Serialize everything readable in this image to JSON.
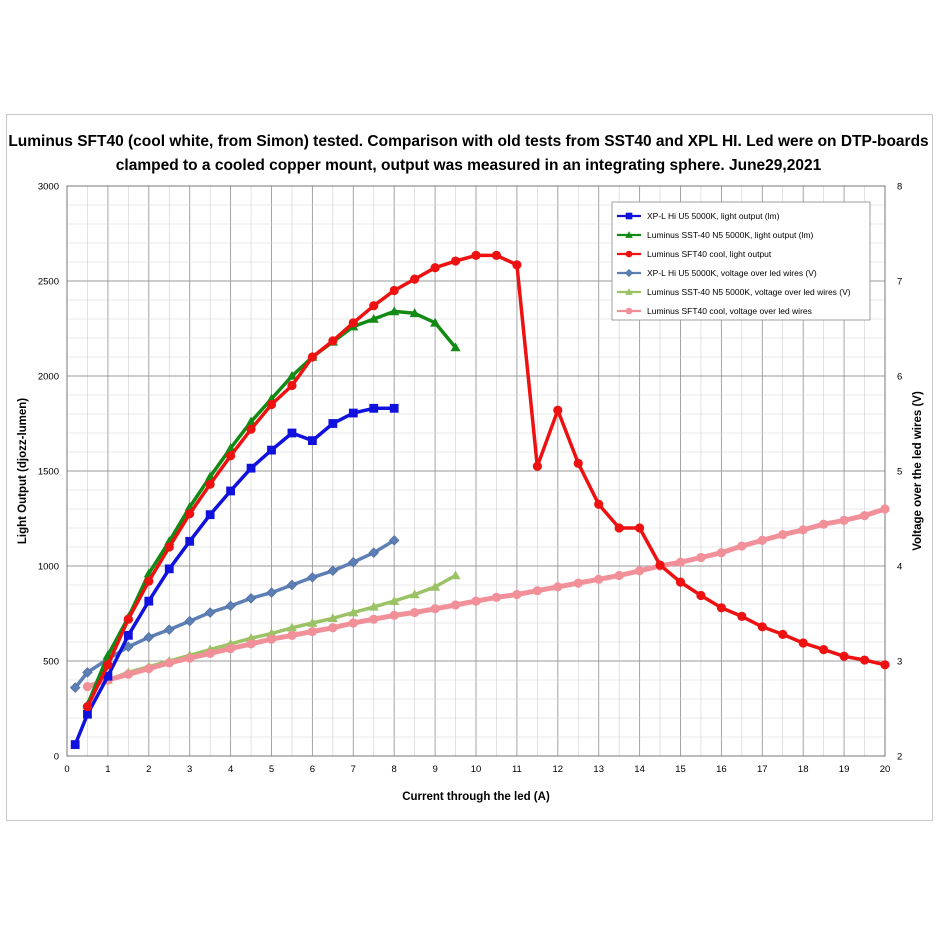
{
  "chart_data": {
    "type": "line",
    "title_lines": [
      "Luminus SFT40 (cool white, from Simon) tested. Comparison with old tests from SST40 and XPL HI. Led were on DTP-boards",
      "clamped to a cooled copper mount, output was measured in an integrating sphere. June29,2021"
    ],
    "xlabel": "Current through the led (A)",
    "ylabel": "Light Output (djozz-lumen)",
    "y2label": "Voltage over the led wires (V)",
    "xlim": [
      0,
      20
    ],
    "ylim": [
      0,
      3000
    ],
    "y2lim": [
      2,
      8
    ],
    "x_ticks": [
      "0",
      "1",
      "2",
      "3",
      "4",
      "5",
      "6",
      "7",
      "8",
      "9",
      "10",
      "11",
      "12",
      "13",
      "14",
      "15",
      "16",
      "17",
      "18",
      "19",
      "20"
    ],
    "y_ticks": [
      "0",
      "500",
      "1000",
      "1500",
      "2000",
      "2500",
      "3000"
    ],
    "y2_ticks": [
      "2",
      "3",
      "4",
      "5",
      "6",
      "7",
      "8"
    ],
    "grid": true,
    "legend_position": "top-right",
    "series": [
      {
        "name": "XP-L Hi U5 5000K, light output (lm)",
        "axis": "left",
        "color": "#1111dd",
        "marker": "square",
        "line_width": 3.5,
        "x": [
          0.2,
          0.5,
          1,
          1.5,
          2,
          2.5,
          3,
          3.5,
          4,
          4.5,
          5,
          5.5,
          6,
          6.5,
          7,
          7.5,
          8
        ],
        "y": [
          60,
          220,
          420,
          635,
          815,
          985,
          1130,
          1270,
          1395,
          1515,
          1610,
          1700,
          1660,
          1750,
          1805,
          1830,
          1830
        ]
      },
      {
        "name": "Luminus SST-40 N5 5000K, light output (lm)",
        "axis": "left",
        "color": "#138a13",
        "marker": "triangle",
        "line_width": 3.5,
        "x": [
          0.5,
          1,
          1.5,
          2,
          2.5,
          3,
          3.5,
          4,
          4.5,
          5,
          5.5,
          6,
          6.5,
          7,
          7.5,
          8,
          8.5,
          9,
          9.5
        ],
        "y": [
          270,
          530,
          730,
          960,
          1130,
          1310,
          1470,
          1620,
          1760,
          1880,
          2000,
          2100,
          2180,
          2260,
          2300,
          2340,
          2330,
          2280,
          2150
        ]
      },
      {
        "name": "Luminus SFT40 cool, light output",
        "axis": "left",
        "color": "#ee1111",
        "marker": "circle",
        "line_width": 3.5,
        "x": [
          0.5,
          1,
          1.5,
          2,
          2.5,
          3,
          3.5,
          4,
          4.5,
          5,
          5.5,
          6,
          6.5,
          7,
          7.5,
          8,
          8.5,
          9,
          9.5,
          10,
          10.5,
          11,
          11.5,
          12,
          12.5,
          13,
          13.5,
          14,
          14.5,
          15,
          15.5,
          16,
          16.5,
          17,
          17.5,
          18,
          18.5,
          19,
          19.5,
          20
        ],
        "y": [
          260,
          480,
          720,
          920,
          1100,
          1275,
          1430,
          1580,
          1720,
          1850,
          1950,
          2100,
          2185,
          2280,
          2370,
          2450,
          2510,
          2570,
          2605,
          2635,
          2635,
          2585,
          1525,
          1820,
          1540,
          1325,
          1200,
          1200,
          1005,
          915,
          845,
          780,
          735,
          680,
          640,
          595,
          560,
          525,
          505,
          480
        ]
      },
      {
        "name": "XP-L Hi U5 5000K, voltage over led wires (V)",
        "axis": "right",
        "color": "#5d7fb5",
        "marker": "diamond",
        "line_width": 3.5,
        "x": [
          0.2,
          0.5,
          1,
          1.5,
          2,
          2.5,
          3,
          3.5,
          4,
          4.5,
          5,
          5.5,
          6,
          6.5,
          7,
          7.5,
          8
        ],
        "y": [
          2.72,
          2.88,
          3.02,
          3.15,
          3.25,
          3.33,
          3.42,
          3.51,
          3.58,
          3.66,
          3.72,
          3.8,
          3.88,
          3.95,
          4.04,
          4.14,
          4.27
        ]
      },
      {
        "name": "Luminus SST-40 N5 5000K, voltage over led wires (V)",
        "axis": "right",
        "color": "#9bc264",
        "marker": "triangle",
        "line_width": 3.5,
        "x": [
          1,
          1.5,
          2,
          2.5,
          3,
          3.5,
          4,
          4.5,
          5,
          5.5,
          6,
          6.5,
          7,
          7.5,
          8,
          8.5,
          9,
          9.5
        ],
        "y": [
          2.8,
          2.88,
          2.94,
          3.0,
          3.06,
          3.12,
          3.18,
          3.24,
          3.29,
          3.35,
          3.4,
          3.45,
          3.51,
          3.57,
          3.63,
          3.7,
          3.78,
          3.9
        ]
      },
      {
        "name": "Luminus SFT40 cool, voltage over led wires",
        "axis": "right",
        "color": "#f2909a",
        "marker": "circle",
        "line_width": 5,
        "x": [
          0.5,
          1,
          1.5,
          2,
          2.5,
          3,
          3.5,
          4,
          4.5,
          5,
          5.5,
          6,
          6.5,
          7,
          7.5,
          8,
          8.5,
          9,
          9.5,
          10,
          10.5,
          11,
          11.5,
          12,
          12.5,
          13,
          13.5,
          14,
          14.5,
          15,
          15.5,
          16,
          16.5,
          17,
          17.5,
          18,
          18.5,
          19,
          19.5,
          20
        ],
        "y": [
          2.73,
          2.8,
          2.86,
          2.92,
          2.98,
          3.03,
          3.08,
          3.13,
          3.18,
          3.23,
          3.27,
          3.31,
          3.35,
          3.4,
          3.44,
          3.48,
          3.51,
          3.55,
          3.59,
          3.63,
          3.67,
          3.7,
          3.74,
          3.78,
          3.82,
          3.86,
          3.9,
          3.95,
          4.0,
          4.04,
          4.09,
          4.14,
          4.21,
          4.27,
          4.33,
          4.38,
          4.44,
          4.48,
          4.53,
          4.6
        ]
      }
    ]
  }
}
